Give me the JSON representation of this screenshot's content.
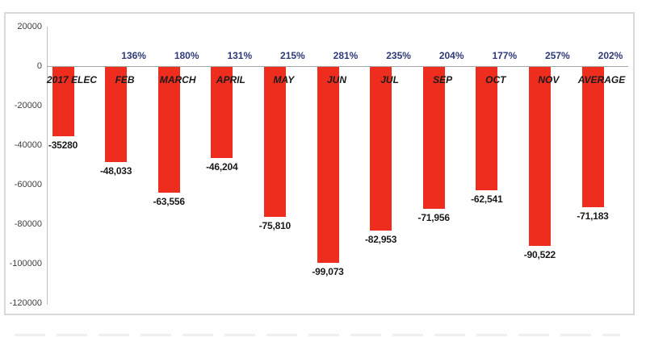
{
  "chart_data": {
    "type": "bar",
    "title": "",
    "xlabel": "",
    "ylabel": "",
    "categories": [
      "2017 ELEC",
      "FEB",
      "MARCH",
      "APRIL",
      "MAY",
      "JUN",
      "JUL",
      "SEP",
      "OCT",
      "NOV",
      "AVERAGE"
    ],
    "values": [
      -35280,
      -48033,
      -63556,
      -46204,
      -75810,
      -99073,
      -82953,
      -71956,
      -62541,
      -90522,
      -71183
    ],
    "value_labels": [
      "-35280",
      "-48,033",
      "-63,556",
      "-46,204",
      "-75,810",
      "-99,073",
      "-82,953",
      "-71,956",
      "-62,541",
      "-90,522",
      "-71,183"
    ],
    "percent_labels": [
      "",
      "136%",
      "180%",
      "131%",
      "215%",
      "281%",
      "235%",
      "204%",
      "177%",
      "257%",
      "202%"
    ],
    "y_ticks": [
      20000,
      0,
      -20000,
      -40000,
      -60000,
      -80000,
      -100000,
      -120000
    ],
    "y_tick_labels": [
      "20000",
      "0",
      "-20000",
      "-40000",
      "-60000",
      "-80000",
      "-100000",
      "-120000"
    ],
    "ylim": [
      -120000,
      20000
    ],
    "grid": false,
    "legend": "none",
    "colors": {
      "bar": "#EE2D1F",
      "percent_label": "#2E3A78",
      "value_label": "#1A1A1A",
      "category_label": "#1A1A1A",
      "axis_line": "#BFBFBF",
      "zero_line": "#A6A6A6",
      "frame_border": "#D9D9D9",
      "tick_label": "#404040"
    }
  }
}
